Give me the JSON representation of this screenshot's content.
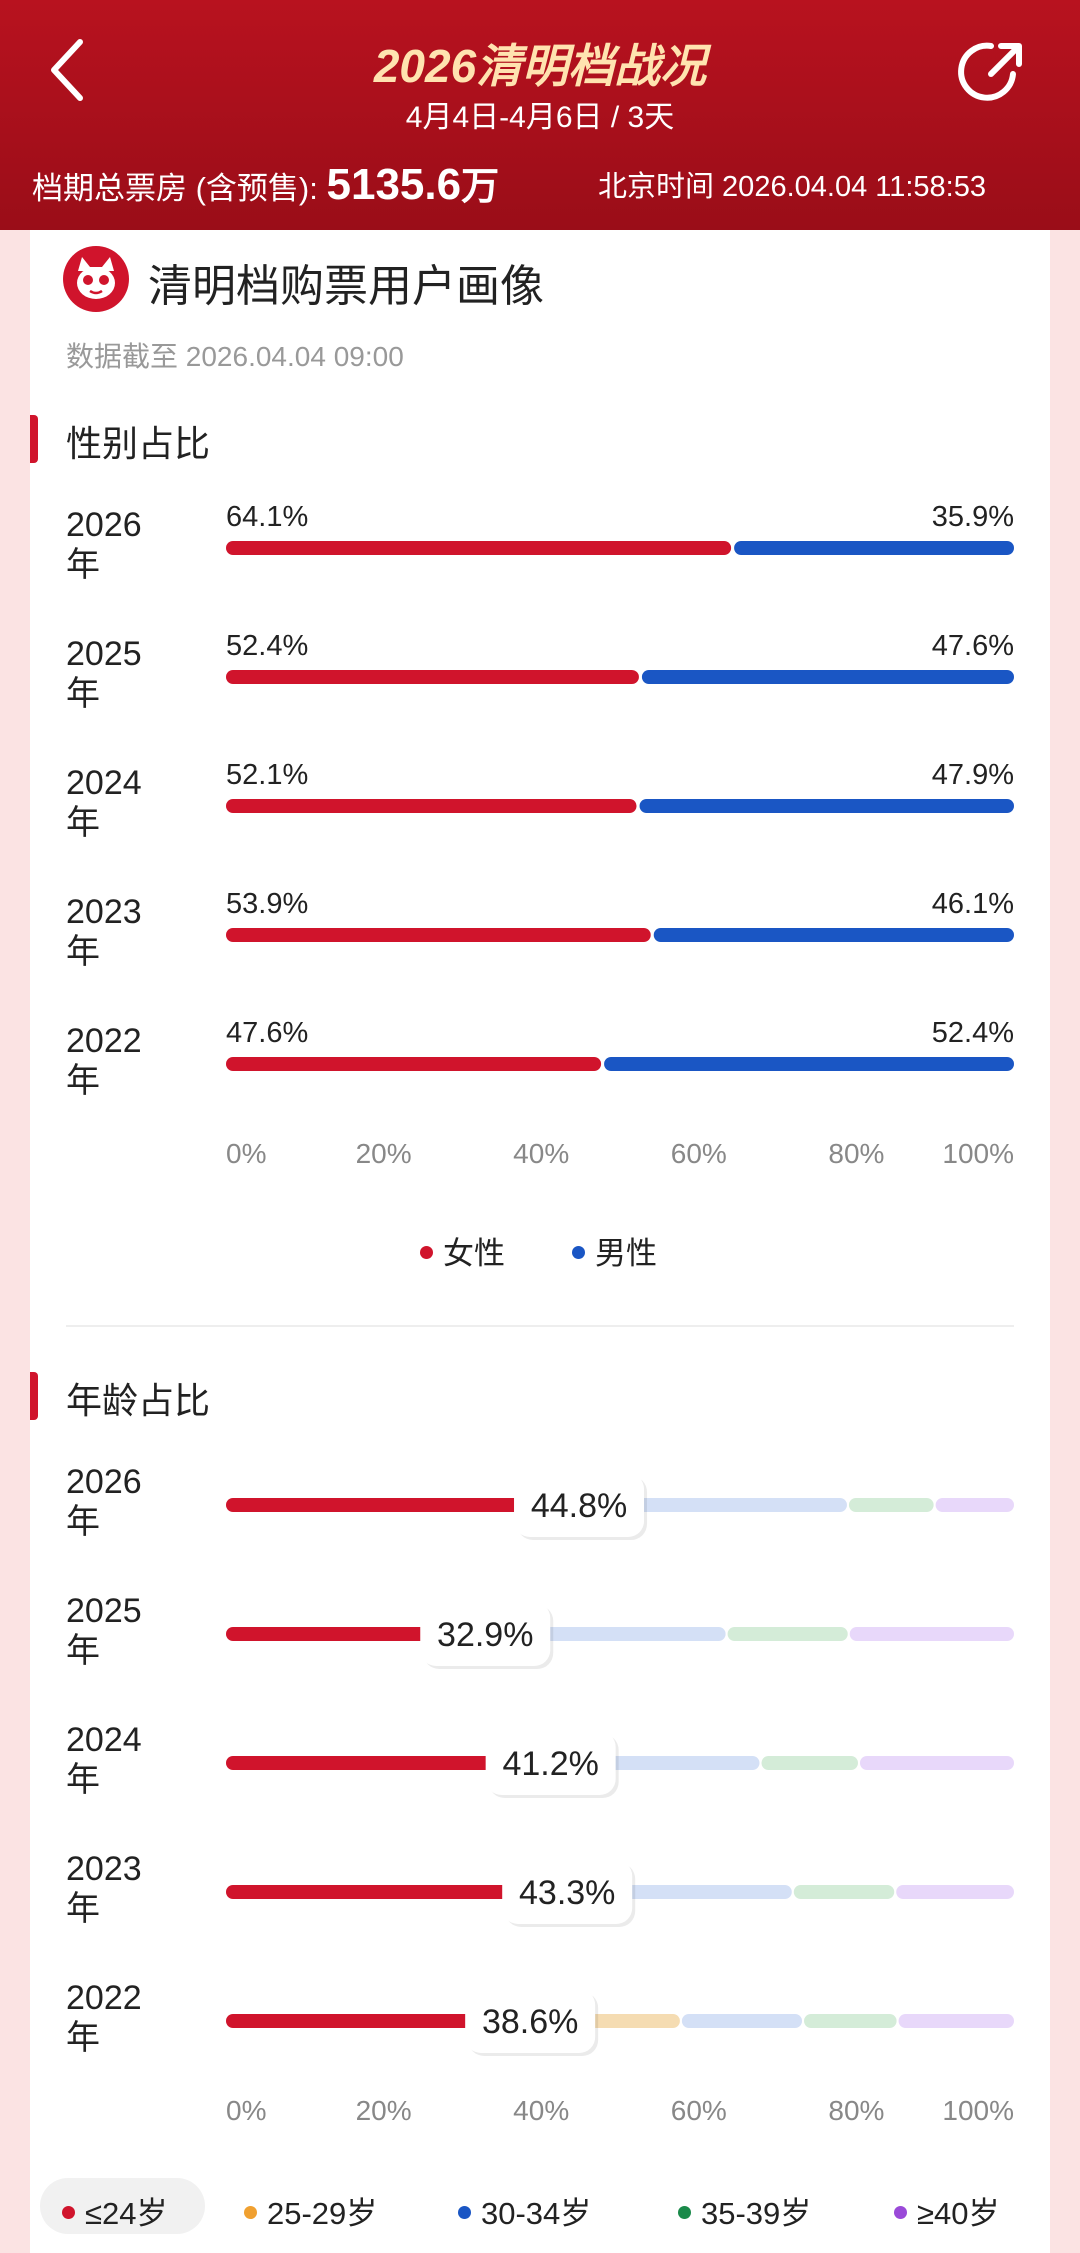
{
  "header": {
    "title": "2026清明档战况",
    "subtitle": "4月4日-4月6日 / 3天",
    "total_label": "档期总票房 (含预售):",
    "total_value": "5135.6",
    "total_unit": "万",
    "time_label": "北京时间 2026.04.04 11:58:53"
  },
  "page": {
    "title": "清明档购票用户画像",
    "update": "数据截至 2026.04.04 09:00"
  },
  "colors": {
    "accent": "#d0142c",
    "female": "#d0142c",
    "male": "#1a56c4",
    "age": [
      "#d0142c",
      "#f5dcb2",
      "#d4e0f6",
      "#d4ecd8",
      "#e8d8fa"
    ]
  },
  "chart_data": [
    {
      "type": "bar",
      "stacked": true,
      "orientation": "horizontal",
      "title": "性别占比",
      "categories": [
        "2026年",
        "2025年",
        "2024年",
        "2023年",
        "2022年"
      ],
      "series": [
        {
          "name": "女性",
          "values": [
            64.1,
            52.4,
            52.1,
            53.9,
            47.6
          ]
        },
        {
          "name": "男性",
          "values": [
            35.9,
            47.6,
            47.9,
            46.1,
            52.4
          ]
        }
      ],
      "labels": {
        "女性": [
          "64.1%",
          "52.4%",
          "52.1%",
          "53.9%",
          "47.6%"
        ],
        "男性": [
          "35.9%",
          "47.6%",
          "47.9%",
          "46.1%",
          "52.4%"
        ]
      },
      "xticks": [
        "0%",
        "20%",
        "40%",
        "60%",
        "80%",
        "100%"
      ],
      "xlim": [
        0,
        100
      ],
      "legend": "bottom"
    },
    {
      "type": "bar",
      "stacked": true,
      "orientation": "horizontal",
      "title": "年龄占比",
      "categories": [
        "2026年",
        "2025年",
        "2024年",
        "2023年",
        "2022年"
      ],
      "series": [
        {
          "name": "≤24岁",
          "values": [
            44.8,
            32.9,
            41.2,
            43.3,
            38.6
          ]
        },
        {
          "name": "25-29岁",
          "values": [
            0,
            0,
            0,
            0,
            19
          ]
        },
        {
          "name": "30-34岁",
          "values": [
            34,
            30.5,
            26.5,
            28.5,
            15.5
          ]
        },
        {
          "name": "35-39岁",
          "values": [
            11,
            15.5,
            12.5,
            13,
            12
          ]
        },
        {
          "name": "≥40岁",
          "values": [
            10.2,
            21.1,
            19.8,
            15.2,
            14.9
          ]
        }
      ],
      "labels": {
        "≤24岁": [
          "44.8%",
          "32.9%",
          "41.2%",
          "43.3%",
          "38.6%"
        ]
      },
      "xticks": [
        "0%",
        "20%",
        "40%",
        "60%",
        "80%",
        "100%"
      ],
      "xlim": [
        0,
        100
      ],
      "legend": "bottom",
      "legend_selected": "≤24岁"
    }
  ]
}
